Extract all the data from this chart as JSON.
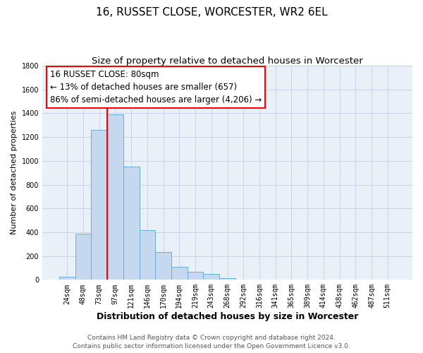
{
  "title": "16, RUSSET CLOSE, WORCESTER, WR2 6EL",
  "subtitle": "Size of property relative to detached houses in Worcester",
  "xlabel": "Distribution of detached houses by size in Worcester",
  "ylabel": "Number of detached properties",
  "bar_labels": [
    "24sqm",
    "48sqm",
    "73sqm",
    "97sqm",
    "121sqm",
    "146sqm",
    "170sqm",
    "194sqm",
    "219sqm",
    "243sqm",
    "268sqm",
    "292sqm",
    "316sqm",
    "341sqm",
    "365sqm",
    "389sqm",
    "414sqm",
    "438sqm",
    "462sqm",
    "487sqm",
    "511sqm"
  ],
  "bar_values": [
    25,
    385,
    1260,
    1390,
    950,
    415,
    235,
    110,
    70,
    50,
    15,
    3,
    2,
    0,
    0,
    0,
    0,
    0,
    0,
    0,
    0
  ],
  "bar_color": "#c5d8f0",
  "bar_edge_color": "#6aaed6",
  "grid_color": "#c8d4e8",
  "bg_color": "#eaf0f8",
  "vline_color": "red",
  "vline_x": 2.5,
  "annotation_text": "16 RUSSET CLOSE: 80sqm\n← 13% of detached houses are smaller (657)\n86% of semi-detached houses are larger (4,206) →",
  "annotation_box_color": "white",
  "annotation_box_edge": "red",
  "ylim": [
    0,
    1800
  ],
  "yticks": [
    0,
    200,
    400,
    600,
    800,
    1000,
    1200,
    1400,
    1600,
    1800
  ],
  "footer_line1": "Contains HM Land Registry data © Crown copyright and database right 2024.",
  "footer_line2": "Contains public sector information licensed under the Open Government Licence v3.0.",
  "title_fontsize": 11,
  "subtitle_fontsize": 9.5,
  "xlabel_fontsize": 9,
  "ylabel_fontsize": 8,
  "tick_fontsize": 7,
  "annotation_fontsize": 8.5,
  "footer_fontsize": 6.5
}
